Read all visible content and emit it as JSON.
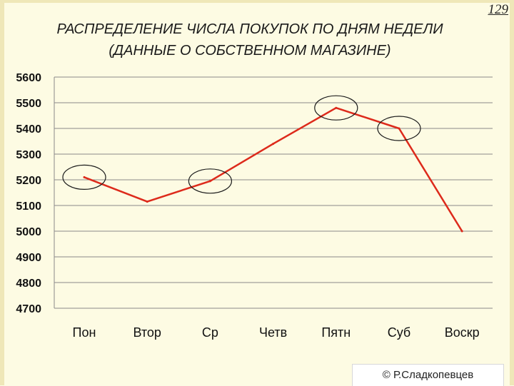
{
  "slide_number": "129",
  "title_line1": "РАСПРЕДЕЛЕНИЕ ЧИСЛА ПОКУПОК ПО ДНЯМ НЕДЕЛИ",
  "title_line2": "(ДАННЫЕ О СОБСТВЕННОМ МАГАЗИНЕ)",
  "copyright": "© Р.Сладкопевцев",
  "colors": {
    "line": "#dd2a1b",
    "grid": "#8a8a8a",
    "circle": "#1a1a1a"
  },
  "chart_data": {
    "type": "line",
    "categories": [
      "Пон",
      "Втор",
      "Ср",
      "Четв",
      "Пятн",
      "Суб",
      "Воскр"
    ],
    "values": [
      5210,
      5115,
      5195,
      5340,
      5480,
      5400,
      5000
    ],
    "ylim": [
      4700,
      5600
    ],
    "yticks": [
      4700,
      4800,
      4900,
      5000,
      5100,
      5200,
      5300,
      5400,
      5500,
      5600
    ],
    "grid": true,
    "highlighted_points": [
      "Пон",
      "Ср",
      "Пятн",
      "Суб"
    ],
    "legend": "none"
  }
}
